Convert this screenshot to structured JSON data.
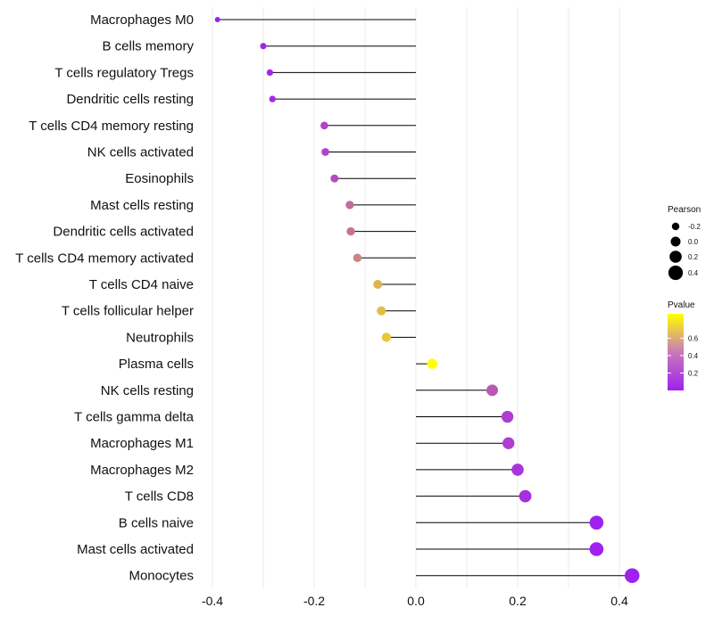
{
  "chart_data": {
    "type": "lollipop",
    "categories": [
      "Macrophages M0",
      "B cells memory",
      "T cells regulatory  Tregs",
      "Dendritic cells resting",
      "T cells CD4 memory resting",
      "NK cells activated",
      "Eosinophils",
      "Mast cells resting",
      "Dendritic cells activated",
      "T cells CD4 memory activated",
      "T cells CD4 naive",
      "T cells follicular helper",
      "Neutrophils",
      "Plasma cells",
      "NK cells resting",
      "T cells gamma delta",
      "Macrophages M1",
      "Macrophages M2",
      "T cells CD8",
      "B cells naive",
      "Mast cells activated",
      "Monocytes"
    ],
    "values": [
      -0.39,
      -0.3,
      -0.287,
      -0.282,
      -0.18,
      -0.178,
      -0.16,
      -0.13,
      -0.128,
      -0.115,
      -0.075,
      -0.068,
      -0.058,
      0.032,
      0.15,
      0.18,
      0.182,
      0.2,
      0.215,
      0.355,
      0.355,
      0.425
    ],
    "pvalues": [
      0.0,
      0.02,
      0.02,
      0.03,
      0.14,
      0.14,
      0.18,
      0.3,
      0.33,
      0.4,
      0.58,
      0.62,
      0.66,
      0.88,
      0.22,
      0.12,
      0.12,
      0.08,
      0.06,
      0.0,
      0.0,
      0.0
    ],
    "xlim": [
      -0.42,
      0.48
    ],
    "xticks": [
      "-0.4",
      "-0.2",
      "0.0",
      "0.2",
      "0.4"
    ],
    "xtick_values": [
      -0.4,
      -0.2,
      0.0,
      0.2,
      0.4
    ],
    "xlabel": "",
    "ylabel": "",
    "grid": true,
    "size_legend": {
      "title": "Pearson",
      "labels": [
        "-0.2",
        "0.0",
        "0.2",
        "0.4"
      ],
      "values": [
        -0.2,
        0.0,
        0.2,
        0.4
      ]
    },
    "color_legend": {
      "title": "Pvalue",
      "labels": [
        "0.6",
        "0.4",
        "0.2"
      ],
      "values": [
        0.6,
        0.4,
        0.2
      ],
      "range": [
        0.0,
        0.88
      ],
      "low_color": "#a020f0",
      "high_color": "#ffff00"
    }
  }
}
